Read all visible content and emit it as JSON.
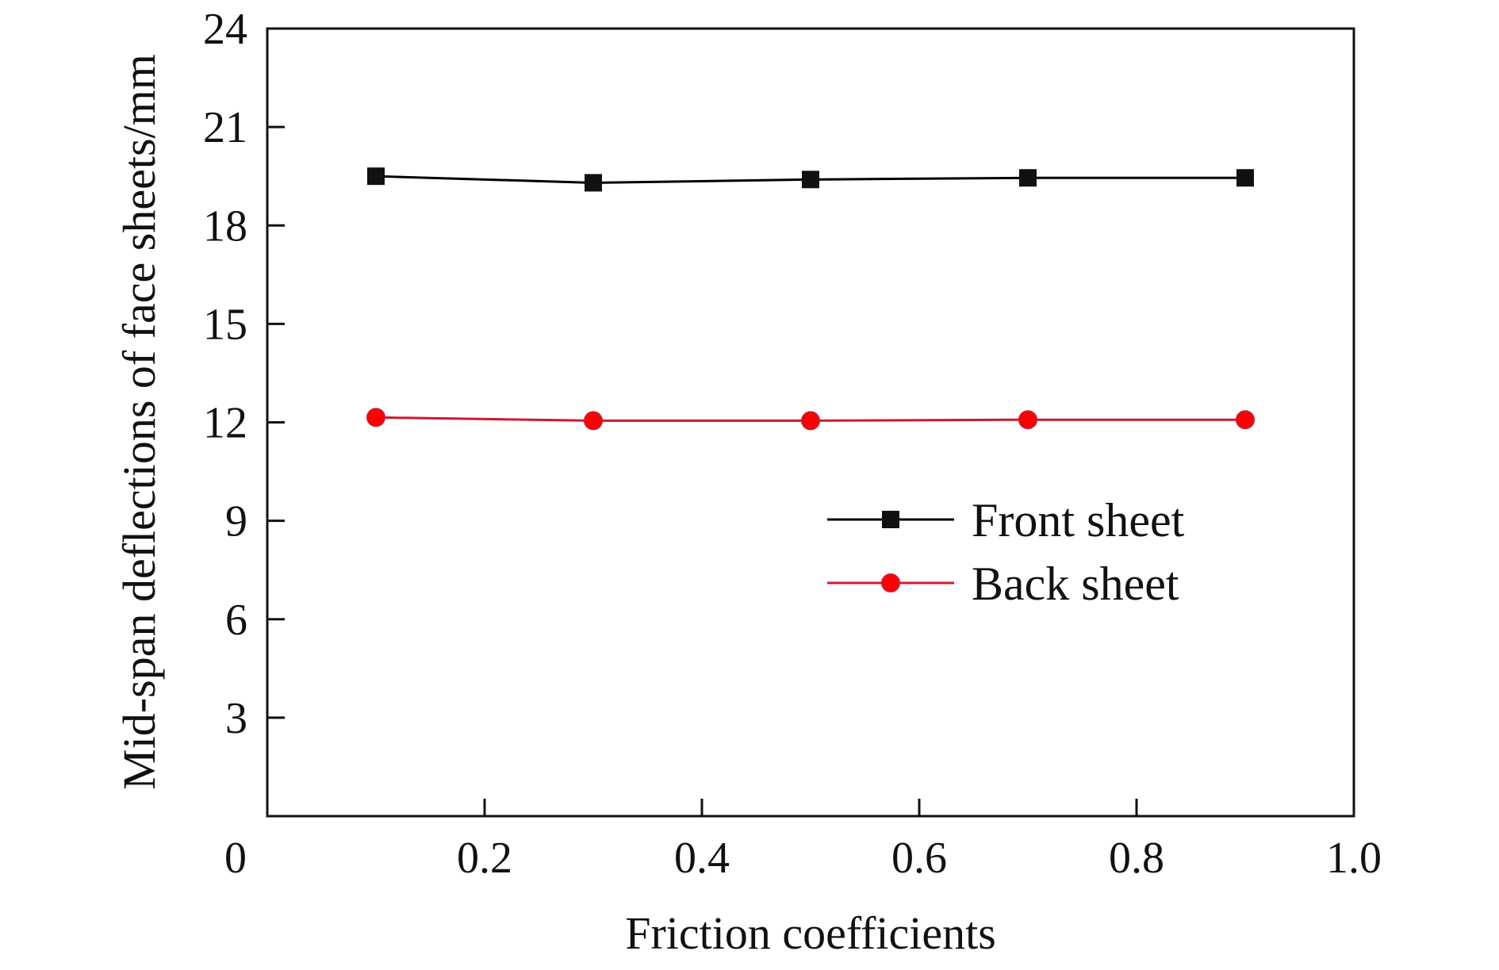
{
  "chart_data": {
    "type": "line",
    "xlabel": "Friction coefficients",
    "ylabel": "Mid-span deflections of face sheets/mm",
    "xlim": [
      0,
      1.0
    ],
    "ylim": [
      0,
      24
    ],
    "x_ticks": [
      0.2,
      0.4,
      0.6,
      0.8,
      1.0
    ],
    "x_tick_labels": [
      "0.2",
      "0.4",
      "0.6",
      "0.8",
      "1.0"
    ],
    "y_ticks": [
      3,
      6,
      9,
      12,
      15,
      18,
      21,
      24
    ],
    "y_tick_labels": [
      "3",
      "6",
      "9",
      "12",
      "15",
      "18",
      "21",
      "24"
    ],
    "origin_label": "0",
    "grid": false,
    "legend_position": "center-right",
    "x": [
      0.1,
      0.3,
      0.5,
      0.7,
      0.9
    ],
    "series": [
      {
        "name": "Front sheet",
        "values": [
          19.5,
          19.3,
          19.4,
          19.45,
          19.45
        ],
        "color": "#000000",
        "marker": "square"
      },
      {
        "name": "Back sheet",
        "values": [
          12.15,
          12.05,
          12.05,
          12.08,
          12.08
        ],
        "color": "#cc1a2e",
        "marker_fill": "#ff0000",
        "marker": "circle"
      }
    ]
  }
}
